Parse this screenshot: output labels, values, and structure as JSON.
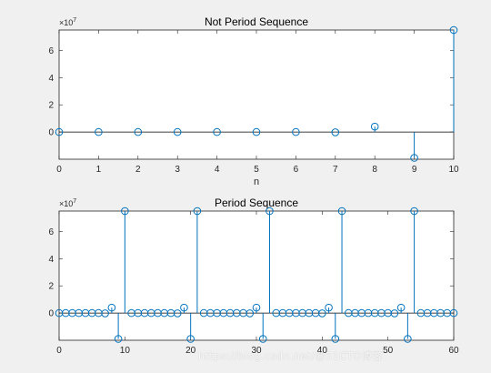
{
  "chart_data": [
    {
      "type": "stem",
      "title": "Not Period Sequence",
      "xlabel": "n",
      "ylabel": "",
      "xlim": [
        0,
        10
      ],
      "ylim": [
        -20000000,
        75000000
      ],
      "yexponent": "×10^7",
      "xticks": [
        0,
        1,
        2,
        3,
        4,
        5,
        6,
        7,
        8,
        9,
        10
      ],
      "xtick_labels": [
        "0",
        "1",
        "2",
        "3",
        "4",
        "5",
        "6",
        "7",
        "8",
        "9",
        "10"
      ],
      "yticks": [
        0,
        20000000,
        40000000,
        60000000
      ],
      "ytick_labels": [
        "0",
        "2",
        "4",
        "6"
      ],
      "x": [
        0,
        1,
        2,
        3,
        4,
        5,
        6,
        7,
        8,
        9,
        10
      ],
      "values": [
        0,
        0,
        0,
        0,
        0,
        0,
        0,
        -200000,
        4000000,
        -19000000,
        75000000
      ],
      "color": "#0072bd",
      "grid": false
    },
    {
      "type": "stem",
      "title": "Period Sequence",
      "xlabel": "",
      "ylabel": "",
      "xlim": [
        0,
        60
      ],
      "ylim": [
        -20000000,
        75000000
      ],
      "yexponent": "×10^7",
      "xticks": [
        0,
        10,
        20,
        30,
        40,
        50,
        60
      ],
      "xtick_labels": [
        "0",
        "10",
        "20",
        "30",
        "40",
        "50",
        "60"
      ],
      "yticks": [
        0,
        20000000,
        40000000,
        60000000
      ],
      "ytick_labels": [
        "0",
        "2",
        "4",
        "6"
      ],
      "x": [
        0,
        1,
        2,
        3,
        4,
        5,
        6,
        7,
        8,
        9,
        10,
        11,
        12,
        13,
        14,
        15,
        16,
        17,
        18,
        19,
        20,
        21,
        22,
        23,
        24,
        25,
        26,
        27,
        28,
        29,
        30,
        31,
        32,
        33,
        34,
        35,
        36,
        37,
        38,
        39,
        40,
        41,
        42,
        43,
        44,
        45,
        46,
        47,
        48,
        49,
        50,
        51,
        52,
        53,
        54,
        55,
        56,
        57,
        58,
        59,
        60
      ],
      "values": [
        0,
        0,
        0,
        0,
        0,
        0,
        0,
        -200000,
        4000000,
        -19000000,
        75000000,
        0,
        0,
        0,
        0,
        0,
        0,
        0,
        -200000,
        4000000,
        -19000000,
        75000000,
        0,
        0,
        0,
        0,
        0,
        0,
        0,
        -200000,
        4000000,
        -19000000,
        75000000,
        0,
        0,
        0,
        0,
        0,
        0,
        0,
        -200000,
        4000000,
        -19000000,
        75000000,
        0,
        0,
        0,
        0,
        0,
        0,
        0,
        -200000,
        4000000,
        -19000000,
        75000000,
        0,
        0,
        0,
        0,
        0,
        0
      ],
      "color": "#0072bd",
      "grid": false
    }
  ],
  "watermark": "https://blog.csdn.net/@51CTO博客"
}
